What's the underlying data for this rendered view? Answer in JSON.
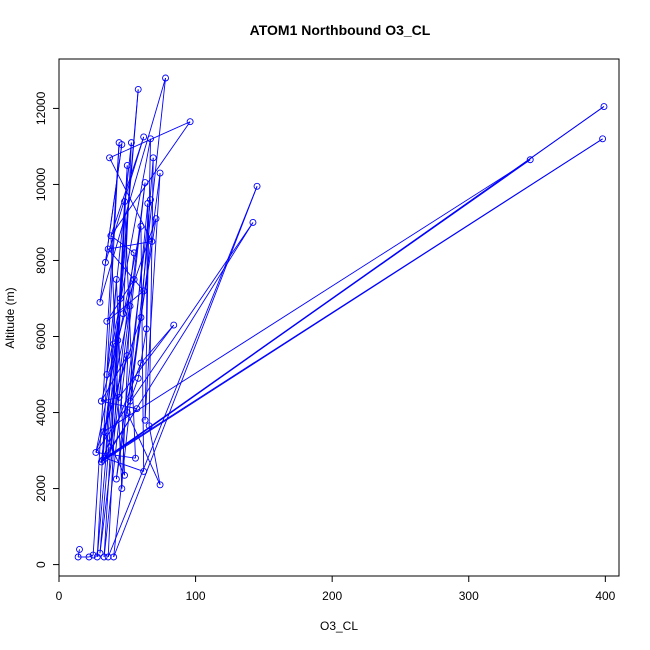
{
  "chart_data": {
    "type": "scatter",
    "title": "ATOM1 Northbound O3_CL",
    "xlabel": "O3_CL",
    "ylabel": "Altitude (m)",
    "xlim": [
      0,
      410
    ],
    "ylim": [
      -300,
      13300
    ],
    "xticks": [
      0,
      100,
      200,
      300,
      400
    ],
    "yticks": [
      0,
      2000,
      4000,
      6000,
      8000,
      10000,
      12000
    ],
    "grid": false,
    "series_color": "#0000ff",
    "mode": "lines+points",
    "points": [
      [
        15,
        400
      ],
      [
        14,
        200
      ],
      [
        22,
        200
      ],
      [
        25,
        250
      ],
      [
        28,
        200
      ],
      [
        30,
        300
      ],
      [
        33,
        200
      ],
      [
        36,
        200
      ],
      [
        40,
        200
      ],
      [
        30,
        6900
      ],
      [
        34,
        7950
      ],
      [
        38,
        8650
      ],
      [
        37,
        10700
      ],
      [
        36,
        8300
      ],
      [
        35,
        6400
      ],
      [
        31,
        4300
      ],
      [
        33,
        3500
      ],
      [
        32,
        2750
      ],
      [
        31,
        2700
      ],
      [
        34,
        2800
      ],
      [
        27,
        2950
      ],
      [
        44,
        11100
      ],
      [
        46,
        11050
      ],
      [
        53,
        11100
      ],
      [
        50,
        10500
      ],
      [
        48,
        9550
      ],
      [
        42,
        7500
      ],
      [
        58,
        12500
      ],
      [
        62,
        11250
      ],
      [
        67,
        11200
      ],
      [
        63,
        10050
      ],
      [
        60,
        8900
      ],
      [
        65,
        9500
      ],
      [
        78,
        12800
      ],
      [
        96,
        11650
      ],
      [
        74,
        10300
      ],
      [
        69,
        10700
      ],
      [
        67,
        9600
      ],
      [
        71,
        9100
      ],
      [
        68,
        8500
      ],
      [
        62,
        7200
      ],
      [
        55,
        7500
      ],
      [
        52,
        6800
      ],
      [
        47,
        6600
      ],
      [
        43,
        5900
      ],
      [
        50,
        5500
      ],
      [
        58,
        4900
      ],
      [
        60,
        5300
      ],
      [
        66,
        3650
      ],
      [
        56,
        2800
      ],
      [
        62,
        2450
      ],
      [
        74,
        2100
      ],
      [
        48,
        2350
      ],
      [
        46,
        2000
      ],
      [
        42,
        2250
      ],
      [
        38,
        3000
      ],
      [
        84,
        6300
      ],
      [
        145,
        9950
      ],
      [
        142,
        9000
      ],
      [
        345,
        10650
      ],
      [
        399,
        12050
      ],
      [
        398,
        11200
      ],
      [
        55,
        8200
      ],
      [
        45,
        7000
      ],
      [
        40,
        5800
      ],
      [
        35,
        5000
      ],
      [
        44,
        4400
      ],
      [
        50,
        4000
      ],
      [
        52,
        4300
      ],
      [
        57,
        4100
      ],
      [
        63,
        3800
      ],
      [
        60,
        6500
      ],
      [
        64,
        6200
      ]
    ],
    "path_order": [
      0,
      1,
      2,
      3,
      21,
      4,
      27,
      5,
      30,
      6,
      24,
      7,
      57,
      8,
      33,
      9,
      22,
      10,
      28,
      11,
      34,
      12,
      39,
      13,
      40,
      14,
      41,
      15,
      45,
      16,
      59,
      17,
      60,
      18,
      61,
      19,
      58,
      20,
      31,
      50,
      19,
      26,
      52,
      16,
      42,
      53,
      11,
      62,
      55,
      44,
      64,
      17,
      69,
      15,
      66,
      56,
      47,
      18,
      63,
      25,
      49,
      20,
      71,
      36,
      48,
      51,
      67,
      32,
      72,
      46,
      68,
      35,
      70,
      29,
      65,
      23,
      43,
      38,
      54,
      37
    ]
  }
}
